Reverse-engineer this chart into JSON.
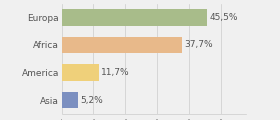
{
  "categories": [
    "Europa",
    "Africa",
    "America",
    "Asia"
  ],
  "values": [
    45.5,
    37.7,
    11.7,
    5.2
  ],
  "labels": [
    "45,5%",
    "37,7%",
    "11,7%",
    "5,2%"
  ],
  "bar_colors": [
    "#a8bc8a",
    "#e8b98a",
    "#efd07a",
    "#7b8fc0"
  ],
  "background_color": "#f0f0f0",
  "xlim": [
    0,
    58
  ],
  "bar_height": 0.6,
  "label_fontsize": 6.5,
  "tick_fontsize": 6.5
}
